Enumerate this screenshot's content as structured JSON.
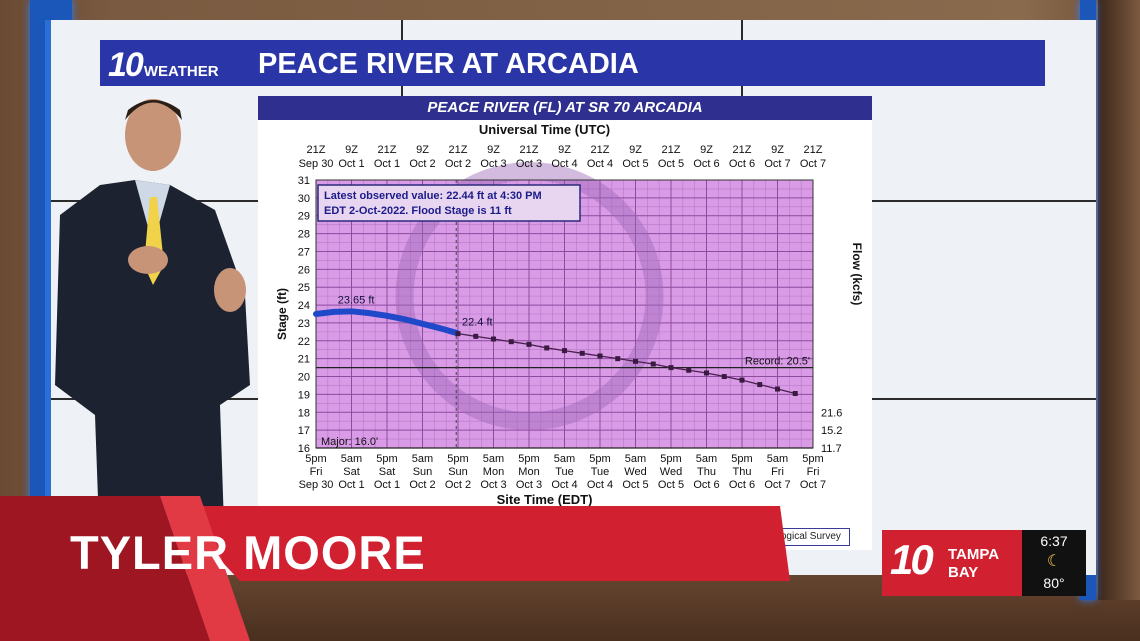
{
  "header": {
    "brand_num": "10",
    "brand_word": "WEATHER",
    "title": "PEACE RIVER AT ARCADIA"
  },
  "chart_header": "PEACE RIVER (FL) AT SR 70 ARCADIA",
  "presenter": {
    "name": "TYLER MOORE"
  },
  "station_logo": {
    "num": "10",
    "line1": "TAMPA",
    "line2": "BAY"
  },
  "weather": {
    "time": "6:37",
    "moon": "☾",
    "temp": "80°"
  },
  "source_text": "US Geological Survey",
  "colors": {
    "header_blue": "#2a36a8",
    "chart_bg": "#d99be6",
    "lower_third_red": "#d1202f",
    "frame_blue": "#1a57b8"
  },
  "chart_data": {
    "type": "line",
    "top_axis_label": "Universal Time (UTC)",
    "top_ticks": [
      [
        "21Z",
        "Sep 30"
      ],
      [
        "9Z",
        "Oct 1"
      ],
      [
        "21Z",
        "Oct 1"
      ],
      [
        "9Z",
        "Oct 2"
      ],
      [
        "21Z",
        "Oct 2"
      ],
      [
        "9Z",
        "Oct 3"
      ],
      [
        "21Z",
        "Oct 3"
      ],
      [
        "9Z",
        "Oct 4"
      ],
      [
        "21Z",
        "Oct 4"
      ],
      [
        "9Z",
        "Oct 5"
      ],
      [
        "21Z",
        "Oct 5"
      ],
      [
        "9Z",
        "Oct 6"
      ],
      [
        "21Z",
        "Oct 6"
      ],
      [
        "9Z",
        "Oct 7"
      ],
      [
        "21Z",
        "Oct 7"
      ]
    ],
    "bottom_axis_label": "Site Time (EDT)",
    "bottom_ticks": [
      [
        "5pm",
        "Fri",
        "Sep 30"
      ],
      [
        "5am",
        "Sat",
        "Oct 1"
      ],
      [
        "5pm",
        "Sat",
        "Oct 1"
      ],
      [
        "5am",
        "Sun",
        "Oct 2"
      ],
      [
        "5pm",
        "Sun",
        "Oct 2"
      ],
      [
        "5am",
        "Mon",
        "Oct 3"
      ],
      [
        "5pm",
        "Mon",
        "Oct 3"
      ],
      [
        "5am",
        "Tue",
        "Oct 4"
      ],
      [
        "5pm",
        "Tue",
        "Oct 4"
      ],
      [
        "5am",
        "Wed",
        "Oct 5"
      ],
      [
        "5pm",
        "Wed",
        "Oct 5"
      ],
      [
        "5am",
        "Thu",
        "Oct 6"
      ],
      [
        "5pm",
        "Thu",
        "Oct 6"
      ],
      [
        "5am",
        "Fri",
        "Oct 7"
      ],
      [
        "5pm",
        "Fri",
        "Oct 7"
      ]
    ],
    "ylabel": "Stage (ft)",
    "ylim": [
      16,
      31
    ],
    "yticks": [
      16,
      17,
      18,
      19,
      20,
      21,
      22,
      23,
      24,
      25,
      26,
      27,
      28,
      29,
      30,
      31
    ],
    "y2label": "Flow (kcfs)",
    "y2_ticks": [
      {
        "stage": 18,
        "label": "21.6"
      },
      {
        "stage": 17,
        "label": "15.2"
      },
      {
        "stage": 16,
        "label": "11.7"
      }
    ],
    "info_line1": "Latest observed value: 22.44 ft at 4:30 PM",
    "info_line2": "EDT 2-Oct-2022. Flood Stage is 11 ft",
    "thresholds": [
      {
        "label": "Record: 20.5'",
        "value": 20.5
      },
      {
        "label": "Major: 16.0'",
        "value": 16.0
      }
    ],
    "annotations": [
      {
        "label": "23.65 ft",
        "x": 0.5,
        "y": 23.65
      },
      {
        "label": "22.4 ft",
        "x": 4.0,
        "y": 22.4
      }
    ],
    "observed": {
      "x": [
        0,
        0.5,
        1,
        1.5,
        2,
        2.5,
        3,
        3.5,
        3.96
      ],
      "y": [
        23.5,
        23.62,
        23.65,
        23.55,
        23.4,
        23.2,
        22.95,
        22.7,
        22.44
      ]
    },
    "forecast": {
      "x": [
        4.0,
        4.5,
        5,
        5.5,
        6,
        6.5,
        7,
        7.5,
        8,
        8.5,
        9,
        9.5,
        10,
        10.5,
        11,
        11.5,
        12,
        12.5,
        13,
        13.5
      ],
      "y": [
        22.4,
        22.25,
        22.1,
        21.95,
        21.8,
        21.6,
        21.45,
        21.3,
        21.15,
        21.0,
        20.85,
        20.7,
        20.5,
        20.35,
        20.2,
        20.0,
        19.8,
        19.55,
        19.3,
        19.05
      ]
    },
    "current_time_x": 3.95
  }
}
